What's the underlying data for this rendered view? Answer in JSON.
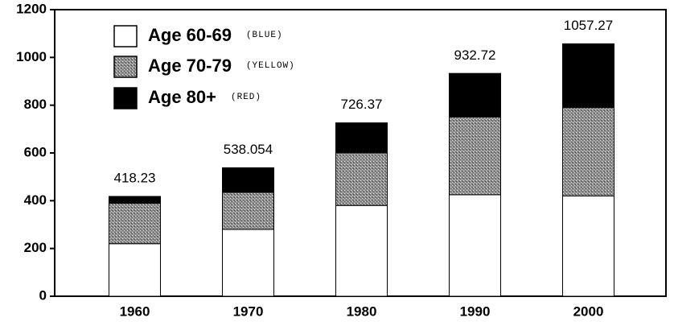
{
  "chart_data": {
    "type": "stacked_bar",
    "categories": [
      "1960",
      "1970",
      "1980",
      "1990",
      "2000"
    ],
    "series": [
      {
        "name": "Age 60-69",
        "note": "(BLUE)",
        "color": "#ffffff",
        "values": [
          220,
          280,
          380,
          425,
          420
        ]
      },
      {
        "name": "Age 70-79",
        "note": "(YELLOW)",
        "color": "#9a9a9a",
        "values": [
          170,
          155,
          220,
          325,
          370
        ]
      },
      {
        "name": "Age 80+",
        "note": "(RED)",
        "color": "#000000",
        "values": [
          28,
          103,
          126,
          183,
          267
        ]
      }
    ],
    "totals": [
      418.23,
      538.054,
      726.37,
      932.72,
      1057.27
    ],
    "ylim": [
      0,
      1200
    ],
    "yticks": [
      0,
      200,
      400,
      600,
      800,
      1000,
      1200
    ]
  }
}
